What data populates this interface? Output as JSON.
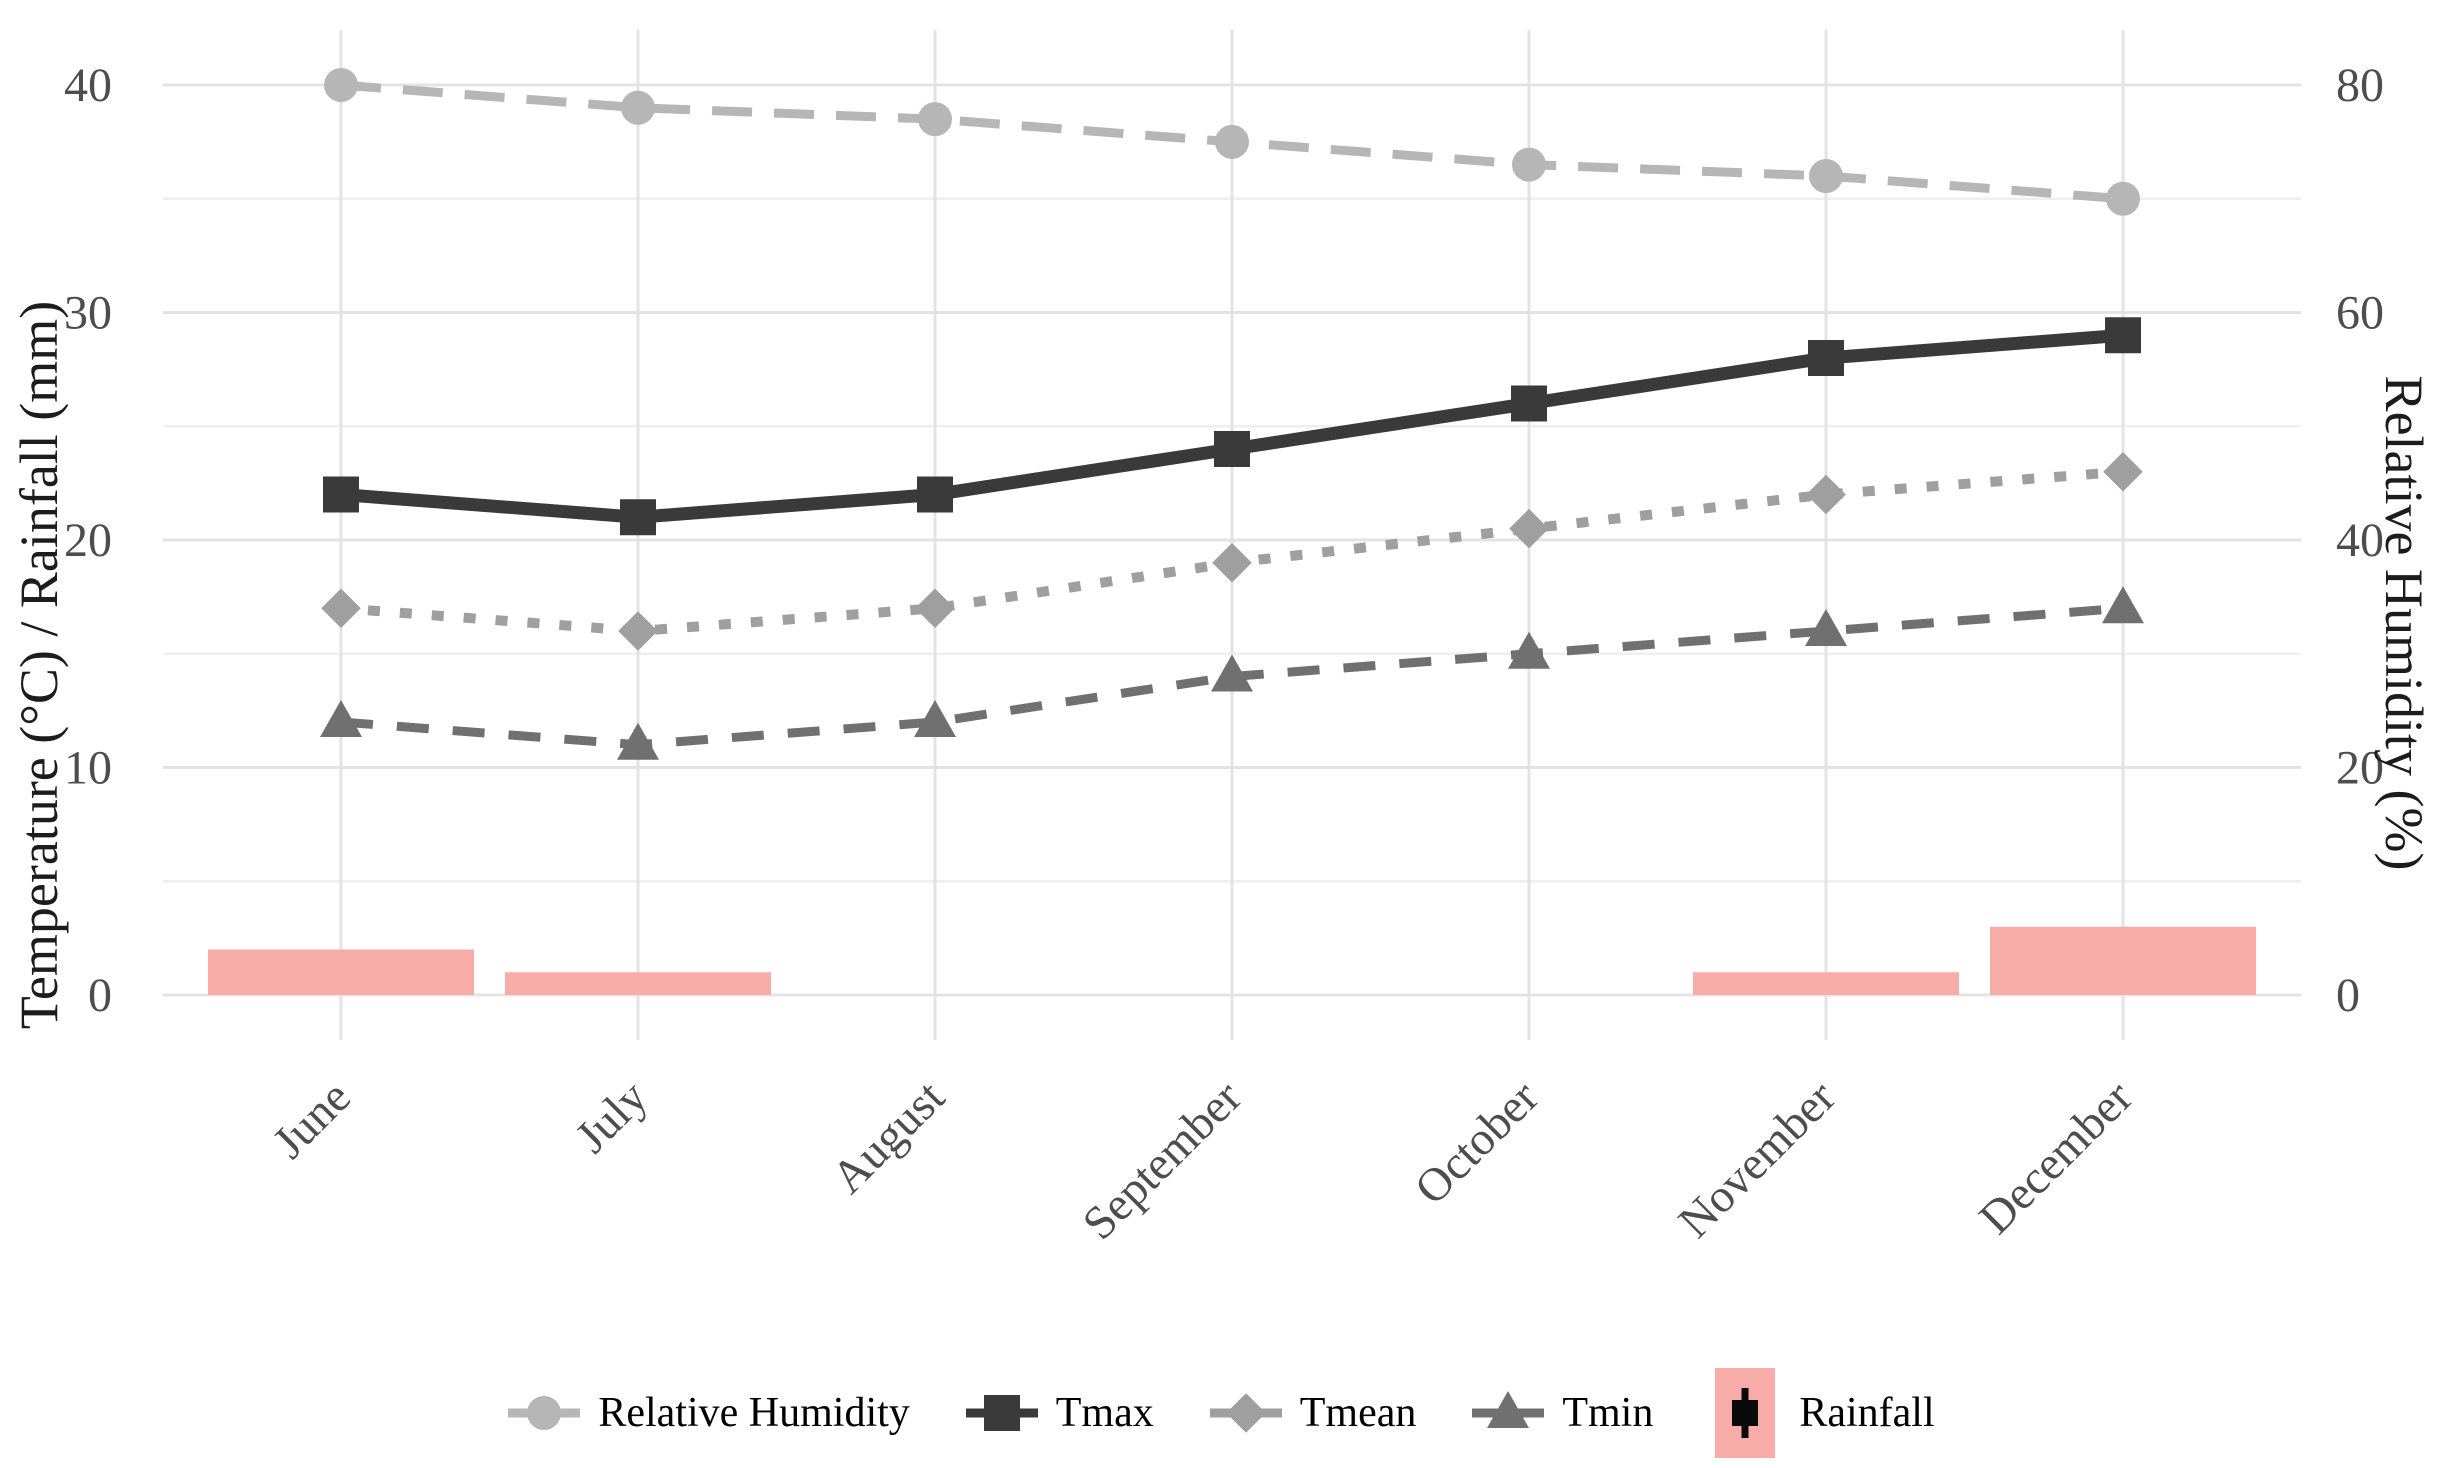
{
  "chart_data": {
    "type": "mixed",
    "title": "",
    "categories": [
      "June",
      "July",
      "August",
      "September",
      "October",
      "November",
      "December"
    ],
    "series": [
      {
        "name": "Relative Humidity",
        "geom": "line",
        "axis": "y2",
        "marker": "circle",
        "linestyle": "longdash",
        "color": "#b6b6b6",
        "values": [
          80,
          78,
          77,
          75,
          73,
          72,
          70
        ]
      },
      {
        "name": "Tmax",
        "geom": "line",
        "axis": "y1",
        "marker": "square",
        "linestyle": "solid",
        "color": "#3a3a3a",
        "values": [
          22,
          21,
          22,
          24,
          26,
          28,
          29
        ]
      },
      {
        "name": "Tmean",
        "geom": "line",
        "axis": "y1",
        "marker": "diamond",
        "linestyle": "dotted",
        "color": "#9f9f9f",
        "values": [
          17,
          16,
          17,
          19,
          20.5,
          22,
          23
        ]
      },
      {
        "name": "Tmin",
        "geom": "line",
        "axis": "y1",
        "marker": "triangle",
        "linestyle": "dashed",
        "color": "#707070",
        "values": [
          12,
          11,
          12,
          14,
          15,
          16,
          17
        ]
      },
      {
        "name": "Rainfall",
        "geom": "bar",
        "axis": "y1",
        "marker": "bar-key",
        "linestyle": "none",
        "color": "#f7aca7",
        "values": [
          2,
          1,
          0,
          0,
          0,
          1,
          3
        ]
      }
    ],
    "ylabel": "Temperature (°C) / Rainfall (mm)",
    "y2label": "Relative Humidity (%)",
    "ylim": [
      0,
      40
    ],
    "y2lim": [
      0,
      80
    ],
    "yticks": [
      0,
      10,
      20,
      30,
      40
    ],
    "y2ticks": [
      0,
      20,
      40,
      60,
      80
    ],
    "minor_yticks": [
      5,
      15,
      25,
      35
    ],
    "grid": "major-x, major-y, minor-y",
    "legend_position": "bottom",
    "colors": {
      "grid_major": "#e3e3e3",
      "grid_minor": "#efefef",
      "tick_text": "#4d4d4d",
      "axis_title_text": "#1c1c1c",
      "rainfall_key_point": "#0a0a0a",
      "background": "#ffffff"
    }
  }
}
